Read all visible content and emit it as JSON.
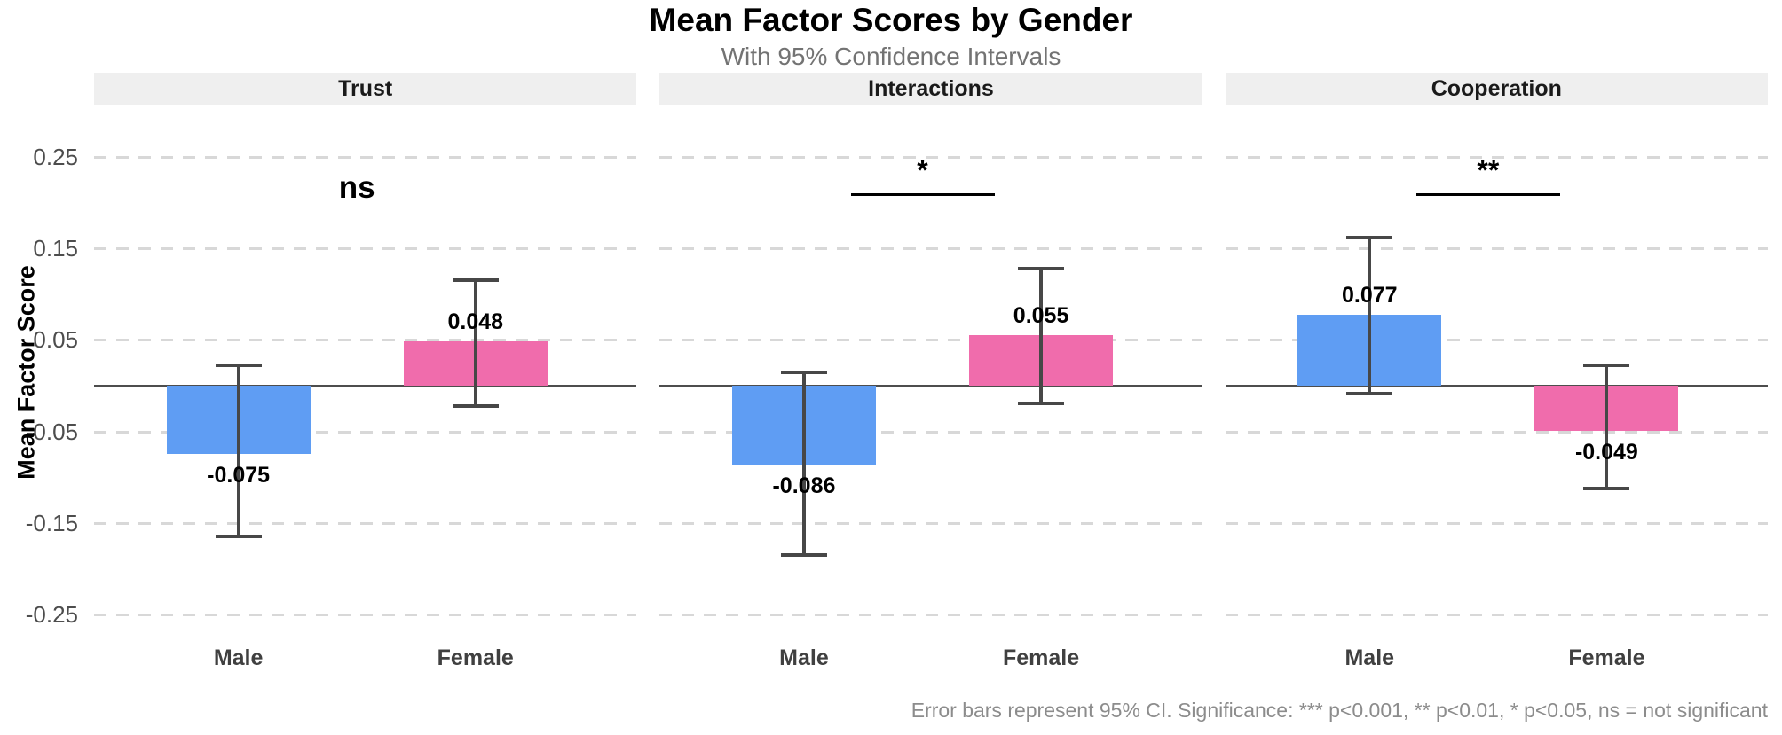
{
  "chart_data": {
    "type": "bar",
    "title": "Mean Factor Scores by Gender",
    "subtitle": "With 95% Confidence Intervals",
    "ylabel": "Mean Factor Score",
    "caption": "Error bars represent 95% CI. Significance: *** p<0.001, ** p<0.01, * p<0.05, ns = not significant",
    "categories": [
      "Male",
      "Female"
    ],
    "colors": {
      "male_bar": "#5F9DF3",
      "female_bar": "#F06CAC",
      "error_bar": "#474747",
      "gridline": "#d8d8d8",
      "strip_bg": "#efefef"
    },
    "ylim": [
      -0.3,
      0.3
    ],
    "grid": "dashed horizontal at labeled ticks",
    "legend": "none",
    "yticks": [
      {
        "label": "0.25",
        "value": 0.25
      },
      {
        "label": "0.15",
        "value": 0.15
      },
      {
        "label": "0.05",
        "value": 0.05
      },
      {
        "label": "-0.05",
        "value": -0.05
      },
      {
        "label": "-0.15",
        "value": -0.15
      },
      {
        "label": "-0.25",
        "value": -0.25
      }
    ],
    "facets": [
      {
        "label": "Trust",
        "significance": "ns",
        "sig_line": false,
        "bars": [
          {
            "category": "Male",
            "value": -0.075,
            "label": "-0.075",
            "ci_low": -0.165,
            "ci_high": 0.022
          },
          {
            "category": "Female",
            "value": 0.048,
            "label": "0.048",
            "ci_low": -0.022,
            "ci_high": 0.115
          }
        ]
      },
      {
        "label": "Interactions",
        "significance": "*",
        "sig_line": true,
        "bars": [
          {
            "category": "Male",
            "value": -0.086,
            "label": "-0.086",
            "ci_low": -0.185,
            "ci_high": 0.015
          },
          {
            "category": "Female",
            "value": 0.055,
            "label": "0.055",
            "ci_low": -0.019,
            "ci_high": 0.128
          }
        ]
      },
      {
        "label": "Cooperation",
        "significance": "**",
        "sig_line": true,
        "bars": [
          {
            "category": "Male",
            "value": 0.077,
            "label": "0.077",
            "ci_low": -0.009,
            "ci_high": 0.162
          },
          {
            "category": "Female",
            "value": -0.049,
            "label": "-0.049",
            "ci_low": -0.112,
            "ci_high": 0.022
          }
        ]
      }
    ]
  }
}
